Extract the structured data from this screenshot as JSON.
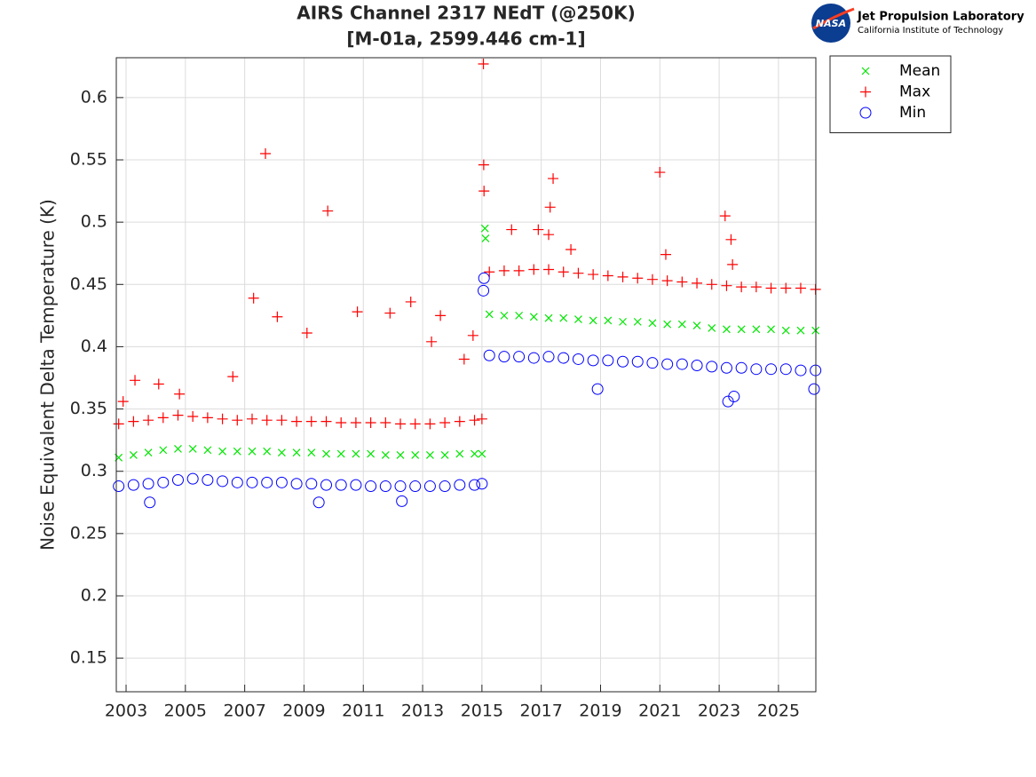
{
  "chart_data": {
    "type": "scatter",
    "title": "AIRS Channel 2317 NEdT (@250K)",
    "subtitle": "[M-01a, 2599.446 cm-1]",
    "ylabel": "Noise Equivalent Delta Temperature (K)",
    "xlim": [
      2002.67,
      2026.26
    ],
    "ylim": [
      0.123,
      0.632
    ],
    "xticks": [
      2003,
      2005,
      2007,
      2009,
      2011,
      2013,
      2015,
      2017,
      2019,
      2021,
      2023,
      2025
    ],
    "yticks": [
      0.15,
      0.2,
      0.25,
      0.3,
      0.35,
      0.4,
      0.45,
      0.5,
      0.55,
      0.6
    ],
    "grid": true,
    "legend": "northeastoutside",
    "series": [
      {
        "name": "Mean",
        "color": "#00e600",
        "marker": "x",
        "x": [
          2002.75,
          2003.25,
          2003.75,
          2004.25,
          2004.75,
          2005.25,
          2005.75,
          2006.25,
          2006.75,
          2007.25,
          2007.75,
          2008.25,
          2008.75,
          2009.25,
          2009.75,
          2010.25,
          2010.75,
          2011.25,
          2011.75,
          2012.25,
          2012.75,
          2013.25,
          2013.75,
          2014.25,
          2014.75,
          2015.0,
          2015.1,
          2015.12,
          2015.25,
          2015.75,
          2016.25,
          2016.75,
          2017.25,
          2017.75,
          2018.25,
          2018.75,
          2019.25,
          2019.75,
          2020.25,
          2020.75,
          2021.25,
          2021.75,
          2022.25,
          2022.75,
          2023.25,
          2023.75,
          2024.25,
          2024.75,
          2025.25,
          2025.75,
          2026.25
        ],
        "values": [
          0.311,
          0.313,
          0.315,
          0.317,
          0.318,
          0.318,
          0.317,
          0.316,
          0.316,
          0.316,
          0.316,
          0.315,
          0.315,
          0.315,
          0.314,
          0.314,
          0.314,
          0.314,
          0.313,
          0.313,
          0.313,
          0.313,
          0.313,
          0.314,
          0.314,
          0.314,
          0.495,
          0.487,
          0.426,
          0.425,
          0.425,
          0.424,
          0.423,
          0.423,
          0.422,
          0.421,
          0.421,
          0.42,
          0.42,
          0.419,
          0.418,
          0.418,
          0.417,
          0.415,
          0.414,
          0.414,
          0.414,
          0.414,
          0.413,
          0.413,
          0.413
        ]
      },
      {
        "name": "Max",
        "color": "#ff0000",
        "marker": "+",
        "x": [
          2002.75,
          2003.25,
          2003.75,
          2004.25,
          2004.75,
          2005.25,
          2005.75,
          2006.25,
          2006.75,
          2007.25,
          2007.75,
          2008.25,
          2008.75,
          2009.25,
          2009.75,
          2010.25,
          2010.75,
          2011.25,
          2011.75,
          2012.25,
          2012.75,
          2013.25,
          2013.75,
          2014.25,
          2014.75,
          2015.0,
          2015.25,
          2015.75,
          2016.25,
          2016.75,
          2017.25,
          2017.75,
          2018.25,
          2018.75,
          2019.25,
          2019.75,
          2020.25,
          2020.75,
          2021.25,
          2021.75,
          2022.25,
          2022.75,
          2023.25,
          2023.75,
          2024.25,
          2024.75,
          2025.25,
          2025.75,
          2026.25,
          2002.9,
          2003.3,
          2004.1,
          2004.8,
          2006.6,
          2007.3,
          2007.7,
          2008.1,
          2009.1,
          2009.8,
          2010.8,
          2011.9,
          2012.6,
          2013.3,
          2013.6,
          2014.4,
          2014.7,
          2015.05,
          2015.06,
          2015.07,
          2016.0,
          2016.9,
          2017.3,
          2017.4,
          2017.25,
          2018.0,
          2021.0,
          2021.2,
          2023.2,
          2023.4,
          2023.45
        ],
        "values": [
          0.338,
          0.34,
          0.341,
          0.343,
          0.345,
          0.344,
          0.343,
          0.342,
          0.341,
          0.342,
          0.341,
          0.341,
          0.34,
          0.34,
          0.34,
          0.339,
          0.339,
          0.339,
          0.339,
          0.338,
          0.338,
          0.338,
          0.339,
          0.34,
          0.341,
          0.342,
          0.46,
          0.461,
          0.461,
          0.462,
          0.462,
          0.46,
          0.459,
          0.458,
          0.457,
          0.456,
          0.455,
          0.454,
          0.453,
          0.452,
          0.451,
          0.45,
          0.449,
          0.448,
          0.448,
          0.447,
          0.447,
          0.447,
          0.446,
          0.356,
          0.373,
          0.37,
          0.362,
          0.376,
          0.439,
          0.555,
          0.424,
          0.411,
          0.509,
          0.428,
          0.427,
          0.436,
          0.404,
          0.425,
          0.39,
          0.409,
          0.627,
          0.546,
          0.525,
          0.494,
          0.494,
          0.512,
          0.535,
          0.49,
          0.478,
          0.54,
          0.474,
          0.505,
          0.486,
          0.466
        ]
      },
      {
        "name": "Min",
        "color": "#0000ff",
        "marker": "o",
        "x": [
          2002.75,
          2003.25,
          2003.75,
          2004.25,
          2004.75,
          2005.25,
          2005.75,
          2006.25,
          2006.75,
          2007.25,
          2007.75,
          2008.25,
          2008.75,
          2009.25,
          2009.75,
          2010.25,
          2010.75,
          2011.25,
          2011.75,
          2012.25,
          2012.75,
          2013.25,
          2013.75,
          2014.25,
          2014.75,
          2015.0,
          2015.25,
          2015.75,
          2016.25,
          2016.75,
          2017.25,
          2017.75,
          2018.25,
          2018.75,
          2019.25,
          2019.75,
          2020.25,
          2020.75,
          2021.25,
          2021.75,
          2022.25,
          2022.75,
          2023.25,
          2023.75,
          2024.25,
          2024.75,
          2025.25,
          2025.75,
          2026.25,
          2003.8,
          2009.5,
          2012.3,
          2015.05,
          2015.07,
          2018.9,
          2023.3,
          2023.5,
          2026.2
        ],
        "values": [
          0.288,
          0.289,
          0.29,
          0.291,
          0.293,
          0.294,
          0.293,
          0.292,
          0.291,
          0.291,
          0.291,
          0.291,
          0.29,
          0.29,
          0.289,
          0.289,
          0.289,
          0.288,
          0.288,
          0.288,
          0.288,
          0.288,
          0.288,
          0.289,
          0.289,
          0.29,
          0.393,
          0.392,
          0.392,
          0.391,
          0.392,
          0.391,
          0.39,
          0.389,
          0.389,
          0.388,
          0.388,
          0.387,
          0.386,
          0.386,
          0.385,
          0.384,
          0.383,
          0.383,
          0.382,
          0.382,
          0.382,
          0.381,
          0.381,
          0.275,
          0.275,
          0.276,
          0.445,
          0.455,
          0.366,
          0.356,
          0.36,
          0.366
        ]
      }
    ]
  },
  "logo": {
    "badge": "NASA",
    "org": "Jet Propulsion Laboratory",
    "sub": "California Institute of Technology"
  }
}
